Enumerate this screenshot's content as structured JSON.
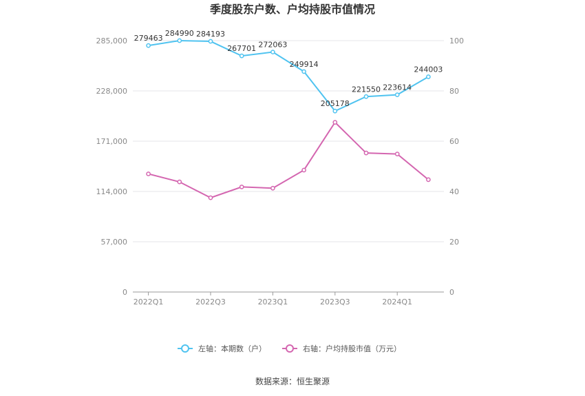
{
  "chart_data": {
    "type": "line",
    "title": "季度股东户数、户均持股市值情况",
    "categories": [
      "2022Q1",
      "2022Q2",
      "2022Q3",
      "2022Q4",
      "2023Q1",
      "2023Q2",
      "2023Q3",
      "2023Q4",
      "2024Q1",
      "2024Q2"
    ],
    "x_tick_labels": [
      "2022Q1",
      "2022Q3",
      "2023Q1",
      "2023Q3",
      "2024Q1"
    ],
    "x_tick_indices": [
      0,
      2,
      4,
      6,
      8
    ],
    "left_axis": {
      "ylim": [
        0,
        285000
      ],
      "ticks": [
        0,
        57000,
        114000,
        171000,
        228000,
        285000
      ],
      "tick_labels": [
        "0",
        "57,000",
        "114,000",
        "171,000",
        "228,000",
        "285,000"
      ]
    },
    "right_axis": {
      "ylim": [
        0,
        100
      ],
      "ticks": [
        0,
        20,
        40,
        60,
        80,
        100
      ],
      "tick_labels": [
        "0",
        "20",
        "40",
        "60",
        "80",
        "100"
      ]
    },
    "series": [
      {
        "name": "左轴：本期数（户）",
        "axis": "left",
        "color": "#4fc3f0",
        "values": [
          279463,
          284990,
          284193,
          267701,
          272063,
          249914,
          205178,
          221550,
          223614,
          244003
        ],
        "value_labels": [
          "279463",
          "284990",
          "284193",
          "267701",
          "272063",
          "249914",
          "205178",
          "221550",
          "223614",
          "244003"
        ]
      },
      {
        "name": "右轴：户均持股市值（万元）",
        "axis": "right",
        "color": "#d466b0",
        "values": [
          47.0,
          43.8,
          37.5,
          41.8,
          41.3,
          48.5,
          67.5,
          55.3,
          54.9,
          44.7
        ]
      }
    ],
    "legend_position": "bottom",
    "grid": true
  },
  "source": "数据来源：恒生聚源"
}
